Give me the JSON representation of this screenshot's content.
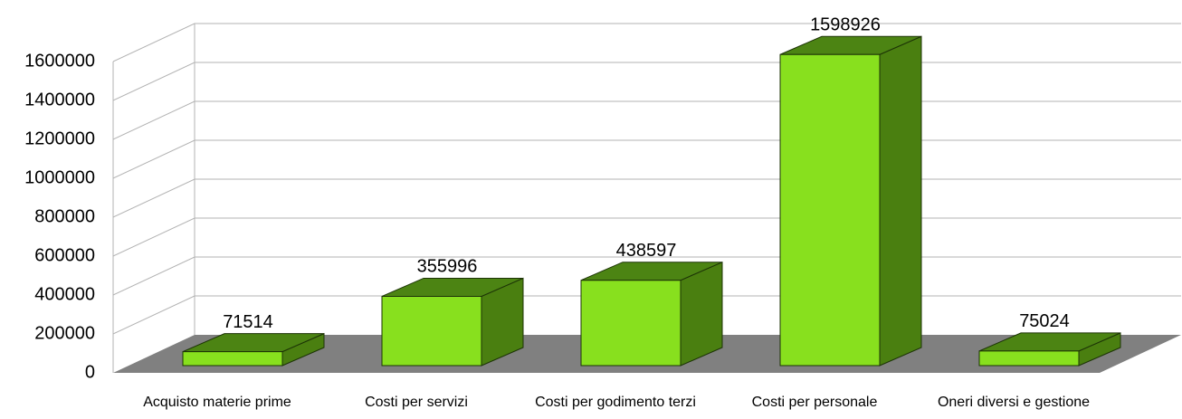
{
  "chart_data": {
    "type": "bar3d",
    "categories": [
      "Acquisto materie prime",
      "Costi per servizi",
      "Costi per godimento terzi",
      "Costi per personale",
      "Oneri diversi e gestione"
    ],
    "values": [
      71514,
      355996,
      438597,
      1598926,
      75024
    ],
    "color": "#88e01e",
    "ylim": [
      0,
      1600000
    ],
    "yticks": [
      0,
      200000,
      400000,
      600000,
      800000,
      1000000,
      1200000,
      1400000,
      1600000
    ],
    "grid": true
  }
}
